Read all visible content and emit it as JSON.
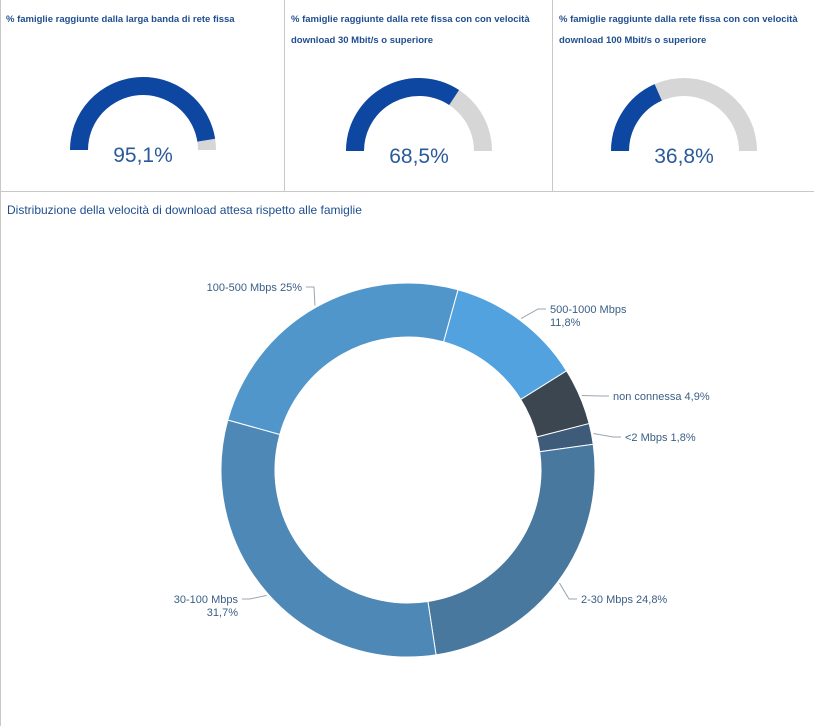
{
  "gauges": [
    {
      "title": "% famiglie raggiunte dalla larga banda di rete fissa",
      "value": 95.1,
      "value_label": "95,1%"
    },
    {
      "title": "% famiglie raggiunte dalla rete fissa con con velocità download 30 Mbit/s o superiore",
      "value": 68.5,
      "value_label": "68,5%"
    },
    {
      "title": "% famiglie raggiunte dalla rete fissa con con velocità download 100 Mbit/s o superiore",
      "value": 36.8,
      "value_label": "36,8%"
    }
  ],
  "colors": {
    "gauge_fill": "#0d47a1",
    "gauge_track": "#d6d6d6",
    "title": "#1f4e8f"
  },
  "chart_data": {
    "type": "pie",
    "title": "Distribuzione della velocità di download attesa rispetto alle famiglie",
    "slices": [
      {
        "lines": [
          "500-1000 Mbps",
          "11,8%"
        ],
        "value": 11.8,
        "color": "#52a2e0"
      },
      {
        "lines": [
          "non connessa 4,9%"
        ],
        "value": 4.9,
        "color": "#3c4650"
      },
      {
        "lines": [
          "<2 Mbps 1,8%"
        ],
        "value": 1.8,
        "color": "#3e5c7a"
      },
      {
        "lines": [
          "2-30 Mbps 24,8%"
        ],
        "value": 24.8,
        "color": "#48789e"
      },
      {
        "lines": [
          "30-100 Mbps",
          "31,7%"
        ],
        "value": 31.7,
        "color": "#4e88b6"
      },
      {
        "lines": [
          "100-500 Mbps 25%"
        ],
        "value": 25.0,
        "color": "#5196cb"
      }
    ]
  }
}
